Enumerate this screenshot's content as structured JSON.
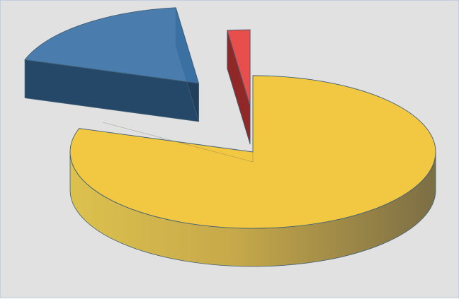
{
  "chart_data": {
    "type": "pie",
    "style": "3d-exploded",
    "title": "",
    "legend": "none",
    "data_labels": "none",
    "slices": [
      {
        "value": 80,
        "color": "#f2c842",
        "exploded": false
      },
      {
        "value": 18,
        "color": "#3d74a8",
        "exploded": true
      },
      {
        "value": 2,
        "color": "#e8413f",
        "exploded": true
      }
    ]
  }
}
